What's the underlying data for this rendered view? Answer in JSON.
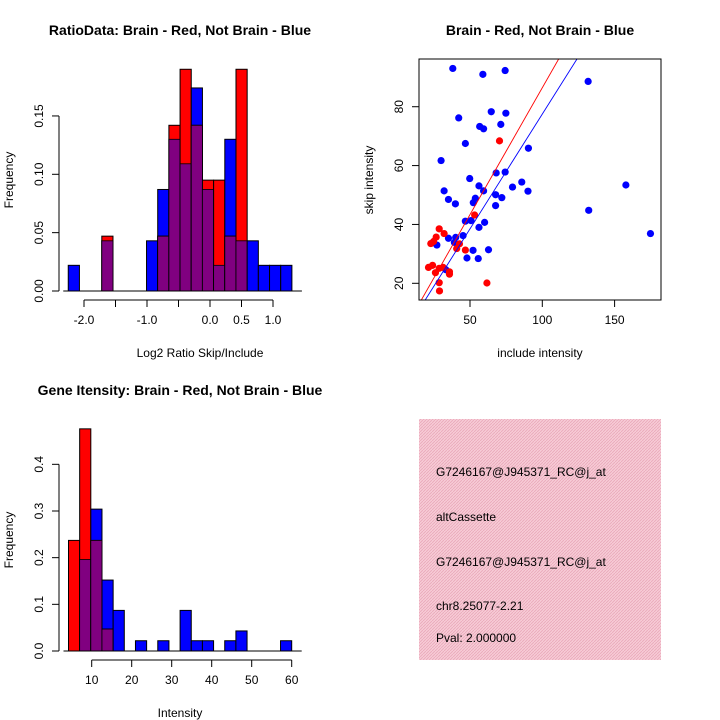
{
  "chart_data": [
    {
      "type": "bar",
      "title": "RatioData: Brain - Red, Not Brain - Blue",
      "xlabel": "Log2 Ratio Skip/Include",
      "ylabel": "Frequency",
      "bin_start": -2.25,
      "bin_width": 0.1775,
      "series": [
        {
          "name": "Not Brain",
          "color": "#0000ff",
          "values": [
            0.022,
            0,
            0,
            0.043,
            0,
            0,
            0,
            0.043,
            0.087,
            0.13,
            0.109,
            0.174,
            0.087,
            0.022,
            0.13,
            0.043,
            0.043,
            0.022,
            0.022,
            0.022
          ]
        },
        {
          "name": "Brain",
          "color": "#ff0000",
          "values": [
            0,
            0,
            0,
            0.047,
            0,
            0,
            0,
            0,
            0.047,
            0.142,
            0.19,
            0.142,
            0.095,
            0.095,
            0.047,
            0.19,
            0,
            0,
            0,
            0
          ]
        }
      ],
      "overlap_color": "#800080",
      "xticks": [
        -2.0,
        -1.5,
        -1.0,
        -0.5,
        0.0,
        0.5,
        1.0
      ],
      "xtick_labels": [
        "-2.0",
        "",
        "-1.0",
        "",
        "0.0",
        "0.5",
        "1.0"
      ],
      "yticks": [
        0,
        0.05,
        0.1,
        0.15
      ],
      "ytick_labels": [
        "0.00",
        "0.05",
        "0.10",
        "0.15"
      ],
      "xlim": [
        -2.3,
        1.35
      ],
      "ylim": [
        0,
        0.19
      ]
    },
    {
      "type": "scatter",
      "title": "Brain - Red, Not Brain - Blue",
      "xlabel": "include intensity",
      "ylabel": "skip intensity",
      "xlim": [
        14.7,
        182
      ],
      "ylim": [
        14.3,
        96.2
      ],
      "xticks": [
        50,
        100,
        150
      ],
      "xtick_labels": [
        "50",
        "100",
        "150"
      ],
      "yticks": [
        20,
        40,
        60,
        80
      ],
      "ytick_labels": [
        "20",
        "40",
        "60",
        "80"
      ],
      "series": [
        {
          "name": "Not Brain",
          "color": "#0000ff",
          "fit": {
            "intercept": -0.5,
            "slope": 0.78
          },
          "points": [
            [
              38.1,
              93.0
            ],
            [
              58.9,
              91.0
            ],
            [
              74.3,
              92.3
            ],
            [
              131.7,
              88.6
            ],
            [
              64.7,
              78.3
            ],
            [
              74.8,
              77.8
            ],
            [
              42.2,
              76.2
            ],
            [
              56.7,
              73.3
            ],
            [
              59.4,
              72.5
            ],
            [
              71.3,
              74.0
            ],
            [
              46.8,
              67.5
            ],
            [
              90.4,
              65.9
            ],
            [
              30.0,
              61.7
            ],
            [
              68.1,
              57.5
            ],
            [
              74.3,
              57.8
            ],
            [
              49.8,
              55.6
            ],
            [
              85.8,
              54.4
            ],
            [
              79.4,
              52.7
            ],
            [
              56.2,
              53.1
            ],
            [
              59.4,
              51.4
            ],
            [
              32.1,
              51.4
            ],
            [
              90.1,
              51.3
            ],
            [
              157.8,
              53.4
            ],
            [
              67.7,
              50.1
            ],
            [
              72.0,
              49.1
            ],
            [
              53.7,
              48.9
            ],
            [
              52.3,
              47.4
            ],
            [
              35.1,
              48.5
            ],
            [
              39.9,
              47.0
            ],
            [
              67.7,
              46.4
            ],
            [
              132.1,
              44.8
            ],
            [
              46.8,
              41.1
            ],
            [
              50.7,
              41.3
            ],
            [
              60.1,
              40.7
            ],
            [
              56.2,
              39.0
            ],
            [
              45.2,
              36.2
            ],
            [
              40.1,
              35.6
            ],
            [
              35.1,
              35.3
            ],
            [
              39.2,
              33.9
            ],
            [
              27.1,
              33.0
            ],
            [
              174.8,
              36.9
            ],
            [
              52.1,
              31.2
            ],
            [
              62.8,
              31.4
            ],
            [
              47.9,
              28.6
            ],
            [
              55.7,
              28.4
            ],
            [
              33.3,
              24.6
            ]
          ]
        },
        {
          "name": "Brain",
          "color": "#ff0000",
          "fit": {
            "intercept": 0.25,
            "slope": 0.862
          },
          "points": [
            [
              70.4,
              68.4
            ],
            [
              53.2,
              43.2
            ],
            [
              28.7,
              38.5
            ],
            [
              32.1,
              36.9
            ],
            [
              26.6,
              35.7
            ],
            [
              24.8,
              34.2
            ],
            [
              22.9,
              33.5
            ],
            [
              42.7,
              33.4
            ],
            [
              40.8,
              31.8
            ],
            [
              46.8,
              31.3
            ],
            [
              21.3,
              25.4
            ],
            [
              24.1,
              26.1
            ],
            [
              28.7,
              25.1
            ],
            [
              26.1,
              23.6
            ],
            [
              31.4,
              25.4
            ],
            [
              35.8,
              23.9
            ],
            [
              35.8,
              23.1
            ],
            [
              28.7,
              20.2
            ],
            [
              61.7,
              20.1
            ],
            [
              28.9,
              17.4
            ]
          ]
        }
      ]
    },
    {
      "type": "bar",
      "title": "Gene Itensity: Brain - Red, Not Brain - Blue",
      "xlabel": "Intensity",
      "ylabel": "Frequency",
      "bin_start": 4.2,
      "bin_width": 2.79,
      "series": [
        {
          "name": "Not Brain",
          "color": "#0000ff",
          "values": [
            0,
            0.196,
            0.304,
            0.152,
            0.087,
            0,
            0.022,
            0,
            0.022,
            0,
            0.087,
            0.022,
            0.022,
            0,
            0.022,
            0.043,
            0,
            0,
            0,
            0.022
          ]
        },
        {
          "name": "Brain",
          "color": "#ff0000",
          "values": [
            0.237,
            0.476,
            0.237,
            0.047,
            0,
            0,
            0,
            0,
            0,
            0,
            0,
            0,
            0,
            0,
            0,
            0,
            0,
            0,
            0,
            0
          ]
        }
      ],
      "overlap_color": "#800080",
      "xticks": [
        10,
        20,
        30,
        40,
        50,
        60
      ],
      "xtick_labels": [
        "10",
        "20",
        "30",
        "40",
        "50",
        "60"
      ],
      "yticks": [
        0,
        0.1,
        0.2,
        0.3,
        0.4
      ],
      "ytick_labels": [
        "0.0",
        "0.1",
        "0.2",
        "0.3",
        "0.4"
      ],
      "xlim": [
        3,
        62
      ],
      "ylim": [
        0,
        0.49
      ]
    }
  ],
  "info_panel": {
    "background": "#f5c2cf",
    "lines": [
      "G7246167@J945371_RC@j_at",
      "altCassette",
      "G7246167@J945371_RC@j_at",
      "chr8.25077-2.21"
    ],
    "pval": "Pval: 2.000000",
    "pval_color": "#8b0000"
  }
}
